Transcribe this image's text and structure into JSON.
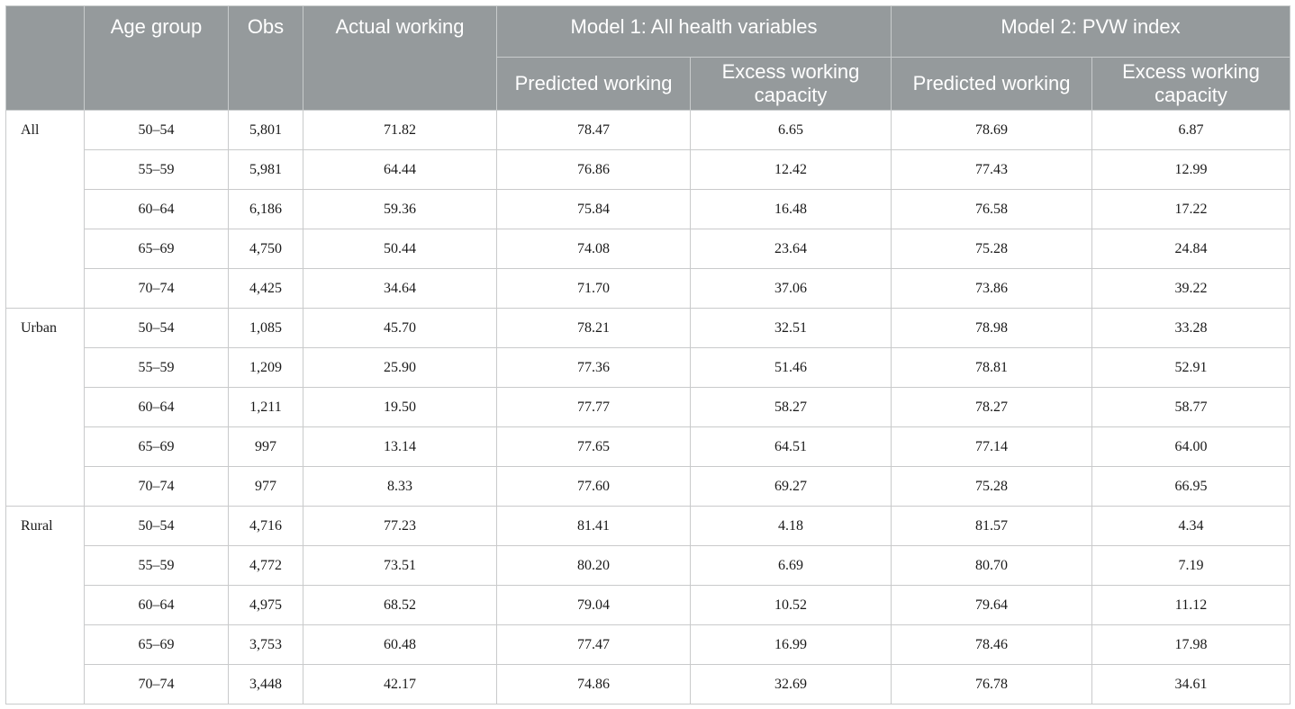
{
  "headers": {
    "age_group": "Age group",
    "obs": "Obs",
    "actual": "Actual working",
    "model1": "Model 1: All health variables",
    "model2": "Model 2: PVW index",
    "predicted": "Predicted working",
    "excess": "Excess working capacity"
  },
  "groups": [
    {
      "name": "All",
      "rows": [
        {
          "age": "50–54",
          "obs": "5,801",
          "actual": "71.82",
          "m1_pred": "78.47",
          "m1_excess": "6.65",
          "m2_pred": "78.69",
          "m2_excess": "6.87"
        },
        {
          "age": "55–59",
          "obs": "5,981",
          "actual": "64.44",
          "m1_pred": "76.86",
          "m1_excess": "12.42",
          "m2_pred": "77.43",
          "m2_excess": "12.99"
        },
        {
          "age": "60–64",
          "obs": "6,186",
          "actual": "59.36",
          "m1_pred": "75.84",
          "m1_excess": "16.48",
          "m2_pred": "76.58",
          "m2_excess": "17.22"
        },
        {
          "age": "65–69",
          "obs": "4,750",
          "actual": "50.44",
          "m1_pred": "74.08",
          "m1_excess": "23.64",
          "m2_pred": "75.28",
          "m2_excess": "24.84"
        },
        {
          "age": "70–74",
          "obs": "4,425",
          "actual": "34.64",
          "m1_pred": "71.70",
          "m1_excess": "37.06",
          "m2_pred": "73.86",
          "m2_excess": "39.22"
        }
      ]
    },
    {
      "name": "Urban",
      "rows": [
        {
          "age": "50–54",
          "obs": "1,085",
          "actual": "45.70",
          "m1_pred": "78.21",
          "m1_excess": "32.51",
          "m2_pred": "78.98",
          "m2_excess": "33.28"
        },
        {
          "age": "55–59",
          "obs": "1,209",
          "actual": "25.90",
          "m1_pred": "77.36",
          "m1_excess": "51.46",
          "m2_pred": "78.81",
          "m2_excess": "52.91"
        },
        {
          "age": "60–64",
          "obs": "1,211",
          "actual": "19.50",
          "m1_pred": "77.77",
          "m1_excess": "58.27",
          "m2_pred": "78.27",
          "m2_excess": "58.77"
        },
        {
          "age": "65–69",
          "obs": "997",
          "actual": "13.14",
          "m1_pred": "77.65",
          "m1_excess": "64.51",
          "m2_pred": "77.14",
          "m2_excess": "64.00"
        },
        {
          "age": "70–74",
          "obs": "977",
          "actual": "8.33",
          "m1_pred": "77.60",
          "m1_excess": "69.27",
          "m2_pred": "75.28",
          "m2_excess": "66.95"
        }
      ]
    },
    {
      "name": "Rural",
      "rows": [
        {
          "age": "50–54",
          "obs": "4,716",
          "actual": "77.23",
          "m1_pred": "81.41",
          "m1_excess": "4.18",
          "m2_pred": "81.57",
          "m2_excess": "4.34"
        },
        {
          "age": "55–59",
          "obs": "4,772",
          "actual": "73.51",
          "m1_pred": "80.20",
          "m1_excess": "6.69",
          "m2_pred": "80.70",
          "m2_excess": "7.19"
        },
        {
          "age": "60–64",
          "obs": "4,975",
          "actual": "68.52",
          "m1_pred": "79.04",
          "m1_excess": "10.52",
          "m2_pred": "79.64",
          "m2_excess": "11.12"
        },
        {
          "age": "65–69",
          "obs": "3,753",
          "actual": "60.48",
          "m1_pred": "77.47",
          "m1_excess": "16.99",
          "m2_pred": "78.46",
          "m2_excess": "17.98"
        },
        {
          "age": "70–74",
          "obs": "3,448",
          "actual": "42.17",
          "m1_pred": "74.86",
          "m1_excess": "32.69",
          "m2_pred": "76.78",
          "m2_excess": "34.61"
        }
      ]
    }
  ]
}
